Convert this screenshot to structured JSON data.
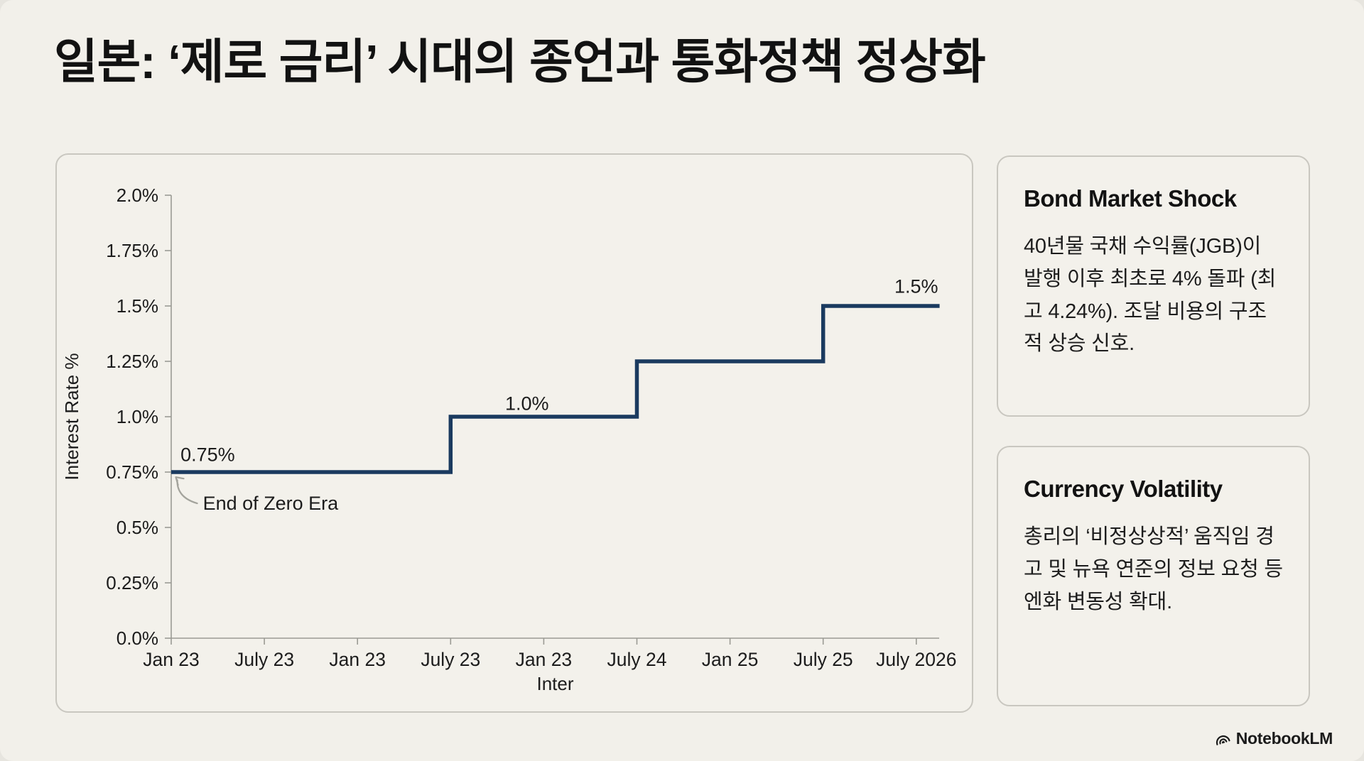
{
  "page": {
    "title": "일본: ‘제로 금리’ 시대의 종언과 통화정책 정상화",
    "background_color": "#f2f0ea",
    "panel_border_color": "#c9c7c0",
    "text_color": "#1d1d1d"
  },
  "chart_data": {
    "type": "line",
    "subtype": "step",
    "title": "",
    "xlabel": "Inter",
    "ylabel": "Interest Rate %",
    "x_tick_labels": [
      "Jan 23",
      "July 23",
      "Jan 23",
      "July 23",
      "Jan 23",
      "July 24",
      "Jan 25",
      "July 25",
      "July 2026"
    ],
    "y_ticks": [
      {
        "value": 0.0,
        "label": "0.0%"
      },
      {
        "value": 0.25,
        "label": "0.25%"
      },
      {
        "value": 0.5,
        "label": "0.5%"
      },
      {
        "value": 0.75,
        "label": "0.75%"
      },
      {
        "value": 1.0,
        "label": "1.0%"
      },
      {
        "value": 1.25,
        "label": "1.25%"
      },
      {
        "value": 1.5,
        "label": "1.5%"
      },
      {
        "value": 1.75,
        "label": "1.75%"
      },
      {
        "value": 2.0,
        "label": "2.0%"
      }
    ],
    "ylim": [
      0,
      2
    ],
    "grid": false,
    "legend": "none",
    "line_color": "#1a3a5f",
    "axis_color": "#9b9b94",
    "series": [
      {
        "name": "Interest Rate %",
        "steps": [
          {
            "from_tick": 0,
            "to_tick": 3,
            "value": 0.75
          },
          {
            "from_tick": 3,
            "to_tick": 5,
            "value": 1.0
          },
          {
            "from_tick": 5,
            "to_tick": 7,
            "value": 1.25
          },
          {
            "from_tick": 7,
            "to_tick": 8.25,
            "value": 1.5
          }
        ]
      }
    ],
    "annotations": [
      {
        "text": "0.75%",
        "t": 0.1,
        "v": 0.8,
        "anchor": "start"
      },
      {
        "text": "1.0%",
        "t": 3.82,
        "v": 1.03,
        "anchor": "middle"
      },
      {
        "text": "1.5%",
        "t": 8.0,
        "v": 1.56,
        "anchor": "middle"
      },
      {
        "text": "End of Zero Era",
        "t": 0.34,
        "v": 0.58,
        "anchor": "start",
        "arrow_to": {
          "t": 0.05,
          "v": 0.727
        }
      }
    ]
  },
  "cards": [
    {
      "title": "Bond Market Shock",
      "body": "40년물 국채 수익률(JGB)이 발행 이후 최초로 4% 돌파 (최고 4.24%). 조달 비용의 구조적 상승 신호."
    },
    {
      "title": "Currency Volatility",
      "body": "총리의 ‘비정상상적’ 움직임 경고 및 뉴욕 연준의 정보 요청 등 엔화 변동성 확대."
    }
  ],
  "footer": {
    "brand": "NotebookLM"
  }
}
